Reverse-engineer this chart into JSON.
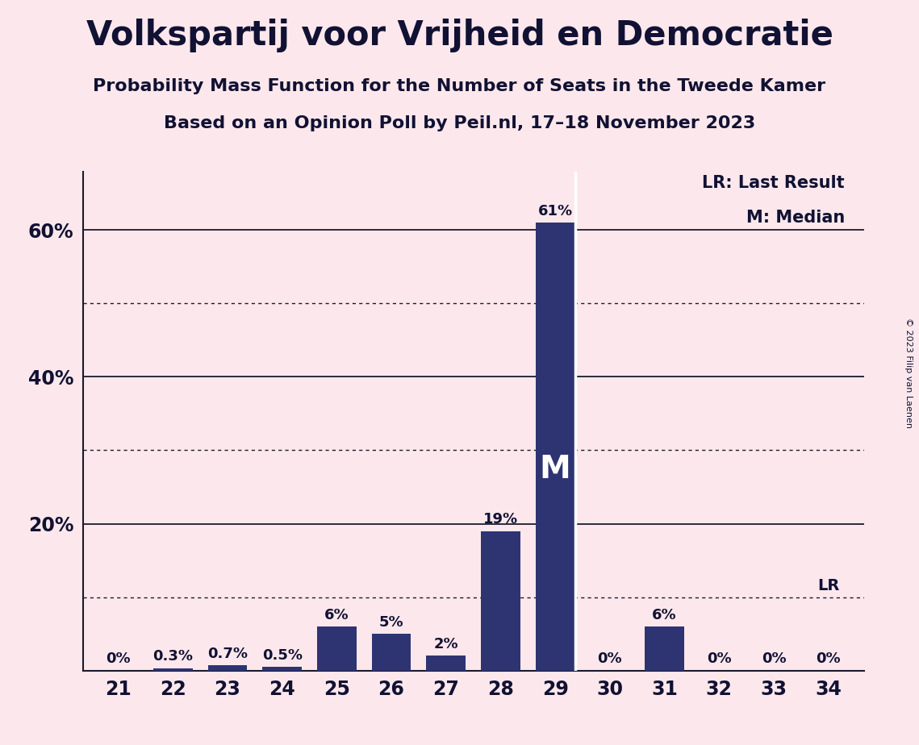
{
  "title": "Volkspartij voor Vrijheid en Democratie",
  "subtitle1": "Probability Mass Function for the Number of Seats in the Tweede Kamer",
  "subtitle2": "Based on an Opinion Poll by Peil.nl, 17–18 November 2023",
  "copyright": "© 2023 Filip van Laenen",
  "categories": [
    21,
    22,
    23,
    24,
    25,
    26,
    27,
    28,
    29,
    30,
    31,
    32,
    33,
    34
  ],
  "values": [
    0.0,
    0.3,
    0.7,
    0.5,
    6.0,
    5.0,
    2.0,
    19.0,
    61.0,
    0.0,
    6.0,
    0.0,
    0.0,
    0.0
  ],
  "bar_color": "#2e3472",
  "background_color": "#fce8ec",
  "text_color": "#111133",
  "bar_labels": [
    "0%",
    "0.3%",
    "0.7%",
    "0.5%",
    "6%",
    "5%",
    "2%",
    "19%",
    "61%",
    "0%",
    "6%",
    "0%",
    "0%",
    "0%"
  ],
  "median_seat": 29,
  "lr_seat": 34,
  "ylim": [
    0,
    68
  ],
  "yticks": [
    20,
    40,
    60
  ],
  "ytick_labels": [
    "20%",
    "40%",
    "60%"
  ],
  "solid_gridlines": [
    20,
    40,
    60
  ],
  "dotted_gridlines": [
    10,
    30,
    50
  ],
  "legend_lr": "LR: Last Result",
  "legend_m": "M: Median",
  "lr_label": "LR",
  "m_label": "M",
  "white_line_after_index": 8
}
